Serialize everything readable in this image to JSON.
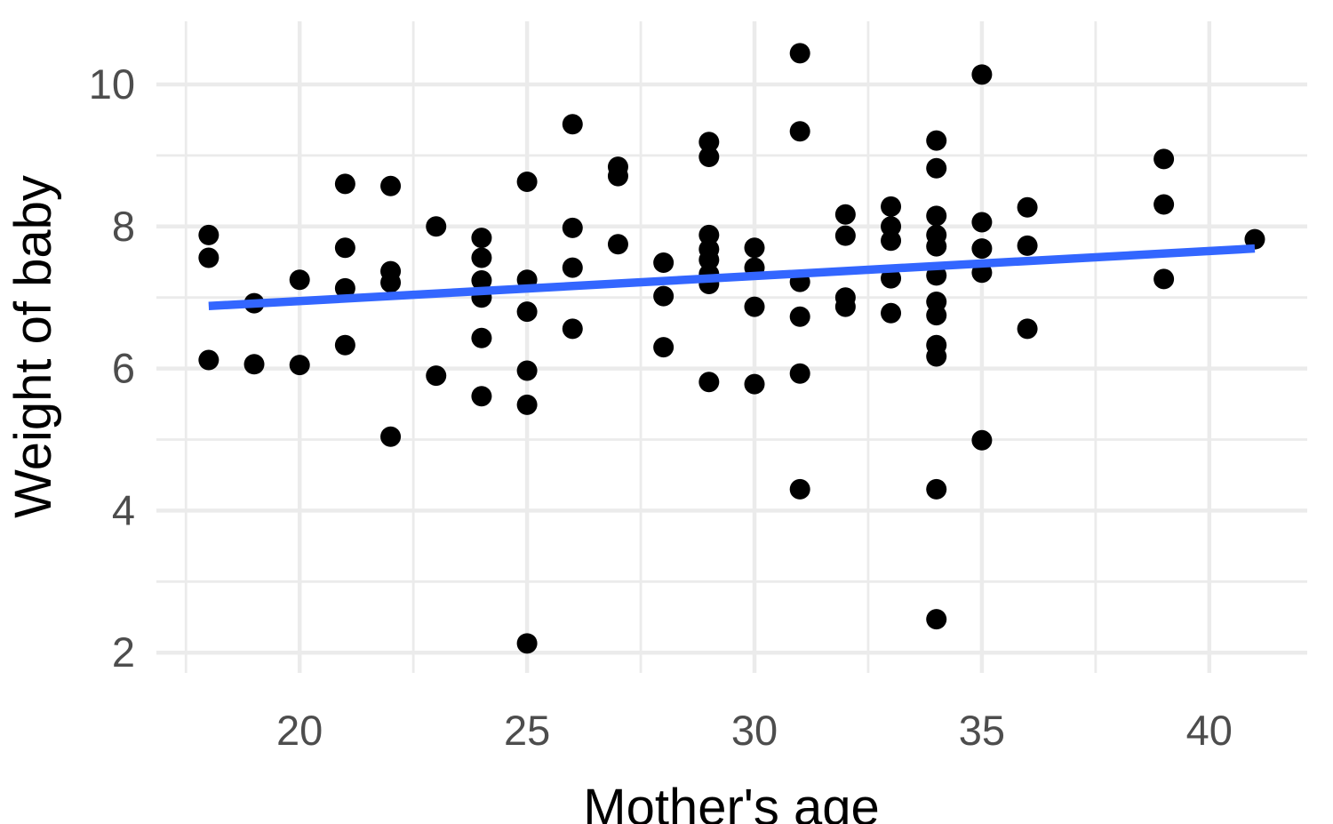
{
  "chart_data": {
    "type": "scatter",
    "title": "",
    "xlabel": "Mother's age",
    "ylabel": "Weight of baby",
    "x_ticks": [
      20,
      25,
      30,
      35,
      40
    ],
    "x_minor_ticks": [
      17.5,
      22.5,
      27.5,
      32.5,
      37.5
    ],
    "y_ticks": [
      2,
      4,
      6,
      8,
      10
    ],
    "y_minor_ticks": [
      3,
      5,
      7,
      9
    ],
    "xlim": [
      16.85,
      42.15
    ],
    "ylim": [
      1.71,
      10.88
    ],
    "grid": true,
    "legend": "none",
    "point_color": "#000000",
    "trend_color": "#3366FF",
    "grid_color": "#EBEBEB",
    "axis_text_color": "#4d4d4d",
    "background_color": "#FFFFFF",
    "points": [
      [
        18,
        7.88
      ],
      [
        18,
        7.56
      ],
      [
        18,
        6.12
      ],
      [
        19,
        6.92
      ],
      [
        19,
        6.06
      ],
      [
        20,
        7.25
      ],
      [
        20,
        6.05
      ],
      [
        21,
        8.6
      ],
      [
        21,
        7.7
      ],
      [
        21,
        7.13
      ],
      [
        21,
        6.33
      ],
      [
        22,
        8.57
      ],
      [
        22,
        7.37
      ],
      [
        22,
        7.21
      ],
      [
        22,
        5.04
      ],
      [
        23,
        8.0
      ],
      [
        23,
        5.9
      ],
      [
        24,
        7.84
      ],
      [
        24,
        7.56
      ],
      [
        24,
        7.24
      ],
      [
        24,
        7.0
      ],
      [
        24,
        6.43
      ],
      [
        24,
        5.61
      ],
      [
        25,
        8.63
      ],
      [
        25,
        7.25
      ],
      [
        25,
        6.8
      ],
      [
        25,
        5.97
      ],
      [
        25,
        5.49
      ],
      [
        25,
        2.13
      ],
      [
        26,
        9.44
      ],
      [
        26,
        7.98
      ],
      [
        26,
        7.42
      ],
      [
        26,
        6.56
      ],
      [
        27,
        8.84
      ],
      [
        27,
        8.71
      ],
      [
        27,
        7.75
      ],
      [
        28,
        7.49
      ],
      [
        28,
        7.02
      ],
      [
        28,
        6.3
      ],
      [
        29,
        9.19
      ],
      [
        29,
        8.98
      ],
      [
        29,
        7.88
      ],
      [
        29,
        7.68
      ],
      [
        29,
        7.53
      ],
      [
        29,
        7.33
      ],
      [
        29,
        7.19
      ],
      [
        29,
        5.81
      ],
      [
        30,
        7.7
      ],
      [
        30,
        7.42
      ],
      [
        30,
        6.87
      ],
      [
        30,
        5.78
      ],
      [
        31,
        10.44
      ],
      [
        31,
        9.34
      ],
      [
        31,
        7.22
      ],
      [
        31,
        6.73
      ],
      [
        31,
        5.93
      ],
      [
        31,
        4.3
      ],
      [
        32,
        8.17
      ],
      [
        32,
        7.87
      ],
      [
        32,
        7.0
      ],
      [
        32,
        6.87
      ],
      [
        33,
        8.28
      ],
      [
        33,
        8.0
      ],
      [
        33,
        7.8
      ],
      [
        33,
        7.27
      ],
      [
        33,
        6.78
      ],
      [
        34,
        9.21
      ],
      [
        34,
        8.82
      ],
      [
        34,
        8.15
      ],
      [
        34,
        7.88
      ],
      [
        34,
        7.72
      ],
      [
        34,
        7.31
      ],
      [
        34,
        6.94
      ],
      [
        34,
        6.75
      ],
      [
        34,
        6.33
      ],
      [
        34,
        6.17
      ],
      [
        34,
        4.3
      ],
      [
        34,
        2.47
      ],
      [
        35,
        10.14
      ],
      [
        35,
        8.06
      ],
      [
        35,
        7.69
      ],
      [
        35,
        7.35
      ],
      [
        35,
        4.99
      ],
      [
        36,
        8.27
      ],
      [
        36,
        7.73
      ],
      [
        36,
        6.56
      ],
      [
        39,
        8.95
      ],
      [
        39,
        8.31
      ],
      [
        39,
        7.26
      ],
      [
        41,
        7.82
      ]
    ],
    "trend_line": {
      "kind": "linear",
      "x0": 18,
      "y0": 6.88,
      "x1": 41,
      "y1": 7.69
    }
  }
}
